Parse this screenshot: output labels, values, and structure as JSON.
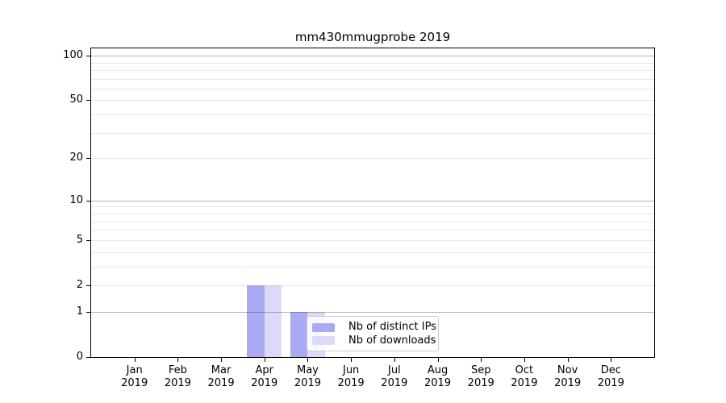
{
  "title": "mm430mmugprobe 2019",
  "chart_data": {
    "type": "bar",
    "title": "mm430mmugprobe 2019",
    "categories": [
      "Jan",
      "Feb",
      "Mar",
      "Apr",
      "May",
      "Jun",
      "Jul",
      "Aug",
      "Sep",
      "Oct",
      "Nov",
      "Dec"
    ],
    "x_tick_year": "2019",
    "series": [
      {
        "name": "Nb of distinct IPs",
        "color": "#a9a9f4",
        "values": [
          0,
          0,
          0,
          2,
          1,
          0,
          0,
          0,
          0,
          0,
          0,
          0
        ]
      },
      {
        "name": "Nb of downloads",
        "color": "#dbdbf9",
        "values": [
          0,
          0,
          0,
          2,
          1,
          0,
          0,
          0,
          0,
          0,
          0,
          0
        ]
      }
    ],
    "yscale": "log1p",
    "ylim": [
      0,
      112
    ],
    "yticks": [
      0,
      1,
      2,
      5,
      10,
      20,
      50,
      100
    ],
    "ygrid_major": [
      1,
      10,
      100
    ],
    "ygrid_minor": [
      2,
      3,
      4,
      5,
      6,
      7,
      8,
      9,
      20,
      30,
      40,
      50,
      60,
      70,
      80,
      90
    ],
    "legend": {
      "position": "lower-center",
      "frame": true
    },
    "grid": "horizontal-only",
    "xlabel": "",
    "ylabel": ""
  },
  "colors": {
    "background": "#ffffff",
    "spine": "#000000",
    "bar_distinct_ips": "#a9a9f4",
    "bar_downloads": "#dbdbf9",
    "legend_border": "#cccccc"
  }
}
